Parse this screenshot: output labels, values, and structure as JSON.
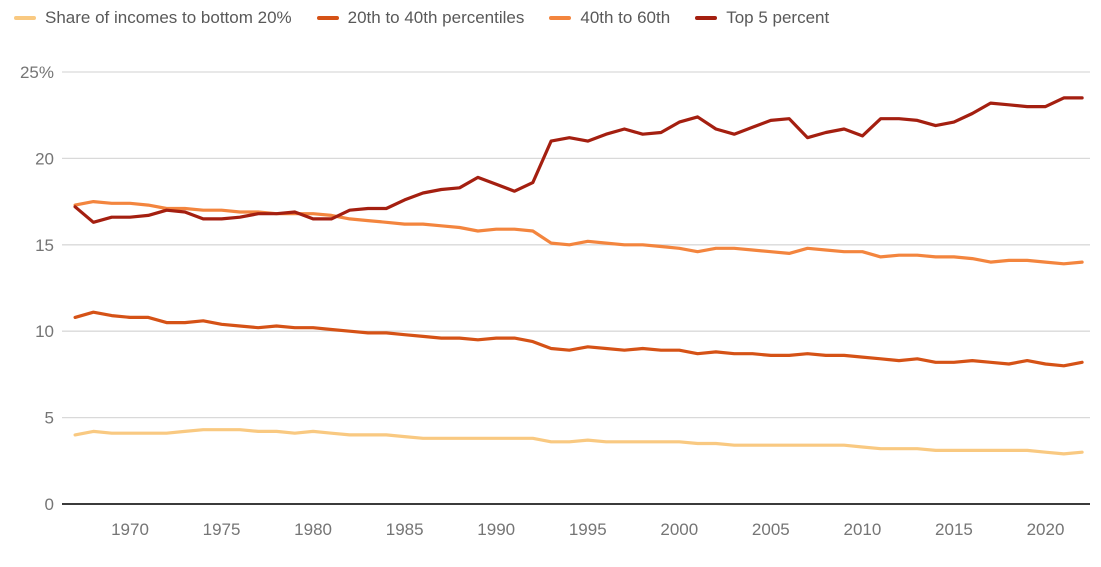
{
  "chart_data": {
    "type": "line",
    "title": "",
    "xlabel": "",
    "ylabel": "",
    "x": [
      1967,
      1968,
      1969,
      1970,
      1971,
      1972,
      1973,
      1974,
      1975,
      1976,
      1977,
      1978,
      1979,
      1980,
      1981,
      1982,
      1983,
      1984,
      1985,
      1986,
      1987,
      1988,
      1989,
      1990,
      1991,
      1992,
      1993,
      1994,
      1995,
      1996,
      1997,
      1998,
      1999,
      2000,
      2001,
      2002,
      2003,
      2004,
      2005,
      2006,
      2007,
      2008,
      2009,
      2010,
      2011,
      2012,
      2013,
      2014,
      2015,
      2016,
      2017,
      2018,
      2019,
      2020,
      2021,
      2022
    ],
    "x_ticks": [
      1970,
      1975,
      1980,
      1985,
      1990,
      1995,
      2000,
      2005,
      2010,
      2015,
      2020
    ],
    "x_tick_labels": [
      "1970",
      "1975",
      "1980",
      "1985",
      "1990",
      "1995",
      "2000",
      "2005",
      "2010",
      "2015",
      "2020"
    ],
    "y_ticks": [
      0,
      5,
      10,
      15,
      20,
      25
    ],
    "y_tick_labels": [
      "0",
      "5",
      "10",
      "15",
      "20",
      "25%"
    ],
    "ylim": [
      0,
      25
    ],
    "xlim": [
      1967,
      2022
    ],
    "grid": "horizontal",
    "legend_position": "top-left",
    "series": [
      {
        "name": "Share of incomes to bottom 20%",
        "color": "#F9C981",
        "values": [
          4.0,
          4.2,
          4.1,
          4.1,
          4.1,
          4.1,
          4.2,
          4.3,
          4.3,
          4.3,
          4.2,
          4.2,
          4.1,
          4.2,
          4.1,
          4.0,
          4.0,
          4.0,
          3.9,
          3.8,
          3.8,
          3.8,
          3.8,
          3.8,
          3.8,
          3.8,
          3.6,
          3.6,
          3.7,
          3.6,
          3.6,
          3.6,
          3.6,
          3.6,
          3.5,
          3.5,
          3.4,
          3.4,
          3.4,
          3.4,
          3.4,
          3.4,
          3.4,
          3.3,
          3.2,
          3.2,
          3.2,
          3.1,
          3.1,
          3.1,
          3.1,
          3.1,
          3.1,
          3.0,
          2.9,
          3.0
        ]
      },
      {
        "name": "20th to 40th percentiles",
        "color": "#D55216",
        "values": [
          10.8,
          11.1,
          10.9,
          10.8,
          10.8,
          10.5,
          10.5,
          10.6,
          10.4,
          10.3,
          10.2,
          10.3,
          10.2,
          10.2,
          10.1,
          10.0,
          9.9,
          9.9,
          9.8,
          9.7,
          9.6,
          9.6,
          9.5,
          9.6,
          9.6,
          9.4,
          9.0,
          8.9,
          9.1,
          9.0,
          8.9,
          9.0,
          8.9,
          8.9,
          8.7,
          8.8,
          8.7,
          8.7,
          8.6,
          8.6,
          8.7,
          8.6,
          8.6,
          8.5,
          8.4,
          8.3,
          8.4,
          8.2,
          8.2,
          8.3,
          8.2,
          8.1,
          8.3,
          8.1,
          8.0,
          8.2
        ]
      },
      {
        "name": "40th to 60th",
        "color": "#F3853E",
        "values": [
          17.3,
          17.5,
          17.4,
          17.4,
          17.3,
          17.1,
          17.1,
          17.0,
          17.0,
          16.9,
          16.9,
          16.8,
          16.8,
          16.8,
          16.7,
          16.5,
          16.4,
          16.3,
          16.2,
          16.2,
          16.1,
          16.0,
          15.8,
          15.9,
          15.9,
          15.8,
          15.1,
          15.0,
          15.2,
          15.1,
          15.0,
          15.0,
          14.9,
          14.8,
          14.6,
          14.8,
          14.8,
          14.7,
          14.6,
          14.5,
          14.8,
          14.7,
          14.6,
          14.6,
          14.3,
          14.4,
          14.4,
          14.3,
          14.3,
          14.2,
          14.0,
          14.1,
          14.1,
          14.0,
          13.9,
          14.0
        ]
      },
      {
        "name": "Top 5 percent",
        "color": "#A41F10",
        "values": [
          17.2,
          16.3,
          16.6,
          16.6,
          16.7,
          17.0,
          16.9,
          16.5,
          16.5,
          16.6,
          16.8,
          16.8,
          16.9,
          16.5,
          16.5,
          17.0,
          17.1,
          17.1,
          17.6,
          18.0,
          18.2,
          18.3,
          18.9,
          18.5,
          18.1,
          18.6,
          21.0,
          21.2,
          21.0,
          21.4,
          21.7,
          21.4,
          21.5,
          22.1,
          22.4,
          21.7,
          21.4,
          21.8,
          22.2,
          22.3,
          21.2,
          21.5,
          21.7,
          21.3,
          22.3,
          22.3,
          22.2,
          21.9,
          22.1,
          22.6,
          23.2,
          23.1,
          23.0,
          23.0,
          23.5,
          23.5
        ]
      }
    ],
    "style": {
      "grid_color": "#D9D9D9",
      "axis_line_color": "#3B3B3B",
      "tick_text_color": "#757575",
      "legend_text_color": "#595959",
      "background_color": "#FFFFFF"
    }
  }
}
